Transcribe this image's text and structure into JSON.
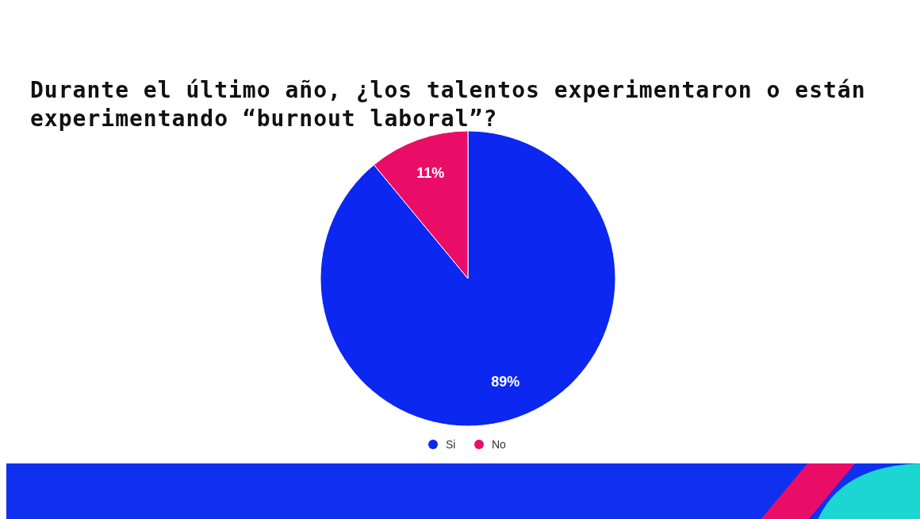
{
  "chart_data": {
    "type": "pie",
    "title": "Durante el último año, ¿los talentos experimentaron o están experimentando “burnout laboral”?",
    "categories": [
      "Si",
      "No"
    ],
    "values": [
      89,
      11
    ],
    "colors": [
      "#0c27ef",
      "#e90d68"
    ],
    "value_labels": [
      "89%",
      "11%"
    ],
    "legend": "bottom"
  }
}
